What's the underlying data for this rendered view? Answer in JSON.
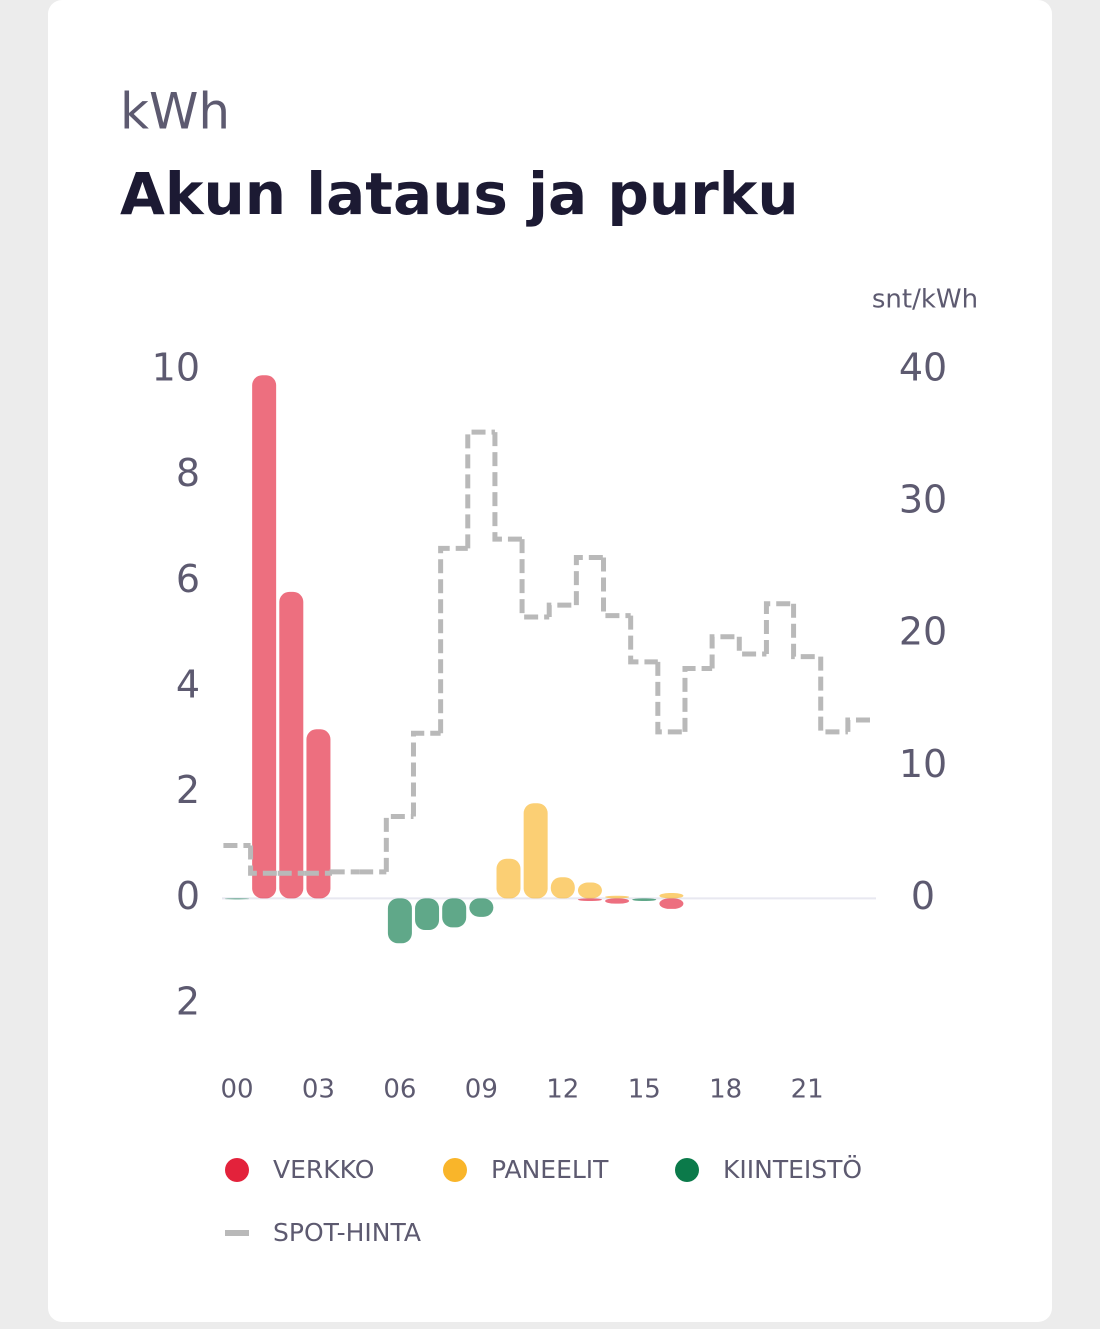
{
  "header": {
    "unit": "kWh",
    "title": "Akun lataus ja purku"
  },
  "chart_data": {
    "type": "bar",
    "y2_label": "snt/kWh",
    "categories": [
      "00",
      null,
      null,
      "03",
      null,
      null,
      "06",
      null,
      null,
      "09",
      null,
      null,
      "12",
      null,
      null,
      "15",
      null,
      null,
      "18",
      null,
      null,
      "21",
      null,
      null
    ],
    "ylim": [
      -2,
      10
    ],
    "yticks": [
      {
        "value": -2,
        "label": "2"
      },
      0,
      2,
      4,
      6,
      8,
      10
    ],
    "y2lim": [
      -8,
      40
    ],
    "y2ticks": [
      0,
      10,
      20,
      30,
      40
    ],
    "series": [
      {
        "name": "VERKKO",
        "color": "#e3223b",
        "values": [
          null,
          9.9,
          5.8,
          3.2,
          null,
          null,
          null,
          null,
          null,
          null,
          null,
          null,
          null,
          -0.05,
          -0.1,
          null,
          -0.2,
          null,
          null,
          null,
          null,
          null,
          null,
          null
        ]
      },
      {
        "name": "PANEELIT",
        "color": "#f9b52a",
        "values": [
          null,
          null,
          null,
          null,
          null,
          null,
          null,
          null,
          null,
          null,
          0.75,
          1.8,
          0.4,
          0.3,
          0.05,
          null,
          0.1,
          null,
          null,
          null,
          null,
          null,
          null,
          null
        ]
      },
      {
        "name": "KIINTEISTÖ",
        "color": "#0b7a4a",
        "values": [
          0,
          null,
          null,
          null,
          null,
          null,
          -0.85,
          -0.6,
          -0.55,
          -0.35,
          null,
          null,
          null,
          null,
          null,
          -0.05,
          null,
          null,
          null,
          null,
          null,
          null,
          null,
          null
        ]
      },
      {
        "name": "SPOT-HINTA",
        "color": "#b9b9b9",
        "axis": "y2",
        "style": "step",
        "values": [
          4.0,
          1.9,
          1.9,
          1.9,
          2.0,
          2.0,
          6.2,
          12.5,
          26.5,
          35.3,
          27.2,
          21.3,
          22.2,
          25.8,
          21.4,
          17.9,
          12.6,
          17.4,
          19.8,
          18.5,
          22.3,
          18.3,
          12.6,
          13.5
        ]
      }
    ]
  }
}
